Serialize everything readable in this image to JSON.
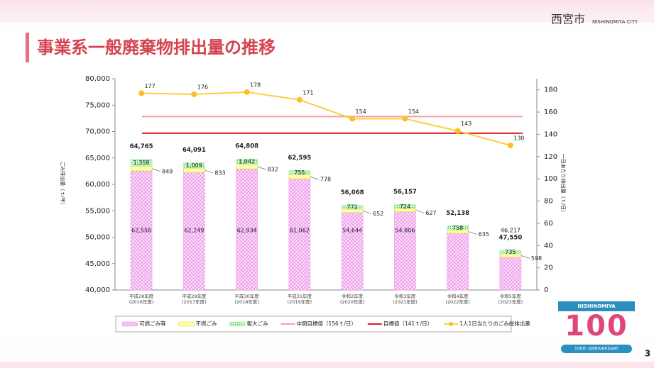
{
  "header": {
    "title": "事業系一般廃棄物排出量の推移",
    "city": "西宮市",
    "city_en": "NISHINOMIYA CITY",
    "page_number": "3"
  },
  "logo": {
    "top": "NISHINOMIYA",
    "number": "100",
    "bottom": "100th ANNIVERSARY"
  },
  "chart_data": {
    "type": "bar",
    "ylabel": "ごみ排出量（ｔ/年）",
    "y2label": "一日あたり排出量（ｔ/日）",
    "categories": [
      "平成28年度",
      "平成29年度",
      "平成30年度",
      "平成31年度",
      "令和2年度",
      "令和3年度",
      "令和4年度",
      "令和5年度"
    ],
    "category_sublabels": [
      "(2016年度)",
      "(2017年度)",
      "(2018年度)",
      "(2019年度)",
      "(2020年度)",
      "(2021年度)",
      "(2022年度)",
      "(2023年度)"
    ],
    "series": [
      {
        "name": "可燃ごみ等",
        "color": "#f39cf0",
        "values": [
          62558,
          62249,
          62934,
          61062,
          54644,
          54806,
          50745,
          46217
        ],
        "value_labels": [
          "62,558",
          "62,249",
          "62,934",
          "61,062",
          "54,644",
          "54,806",
          "50,745",
          "46,217"
        ]
      },
      {
        "name": "不燃ごみ",
        "color": "#ffff99",
        "values": [
          849,
          833,
          832,
          778,
          652,
          627,
          635,
          598
        ]
      },
      {
        "name": "粗大ごみ",
        "color": "#a6f0a6",
        "values": [
          1358,
          1009,
          1042,
          755,
          772,
          724,
          758,
          735
        ],
        "value_labels": [
          "1,358",
          "1,009",
          "1,042",
          "755",
          "772",
          "724",
          "758",
          "735"
        ]
      },
      {
        "name": "1人1日当たりのごみ総排出量",
        "type": "line",
        "axis": "y2",
        "color": "#f7c02a",
        "values": [
          177,
          176,
          178,
          171,
          154,
          154,
          143,
          130
        ]
      }
    ],
    "totals": [
      64765,
      64091,
      64808,
      62595,
      56068,
      56157,
      52138,
      47550
    ],
    "total_labels": [
      "64,765",
      "64,091",
      "64,808",
      "62,595",
      "56,068",
      "56,157",
      "52,138",
      "47,550"
    ],
    "reference_lines": [
      {
        "name": "中間目標値（156ｔ/日）",
        "value": 156,
        "axis": "y2",
        "color": "#f4a0a0"
      },
      {
        "name": "目標値（141ｔ/日）",
        "value": 141,
        "axis": "y2",
        "color": "#e02020"
      }
    ],
    "ylim": [
      40000,
      80000
    ],
    "yticks": [
      {
        "value": 40000,
        "label": "40,000"
      },
      {
        "value": 45000,
        "label": "45,000"
      },
      {
        "value": 50000,
        "label": "50,000"
      },
      {
        "value": 55000,
        "label": "55,000"
      },
      {
        "value": 60000,
        "label": "60,000"
      },
      {
        "value": 65000,
        "label": "65,000"
      },
      {
        "value": 70000,
        "label": "70,000"
      },
      {
        "value": 75000,
        "label": "75,000"
      },
      {
        "value": 80000,
        "label": "80,000"
      }
    ],
    "y2lim": [
      0,
      190
    ],
    "y2ticks": [
      0,
      20,
      40,
      60,
      80,
      100,
      120,
      140,
      160,
      180
    ],
    "legend": "bottom"
  }
}
